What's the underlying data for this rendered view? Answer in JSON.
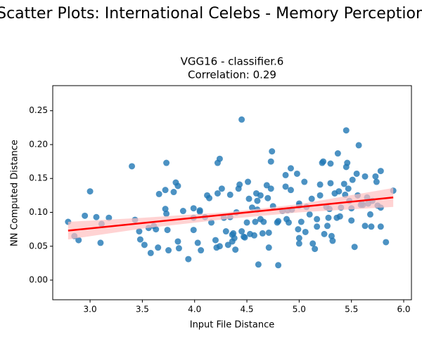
{
  "chart_data": {
    "type": "scatter",
    "suptitle": "Scatter Plots: International Celebs - Memory Perception",
    "title": "VGG16 - classifier.6",
    "subtitle": "Correlation: 0.29",
    "xlabel": "Input File Distance",
    "ylabel": "NN Computed Distance",
    "xlim": [
      2.643,
      6.074
    ],
    "ylim": [
      -0.029,
      0.287
    ],
    "xticks": [
      {
        "value": 3,
        "label": "3.0"
      },
      3.5,
      {
        "value": 4,
        "label": "4.0"
      },
      4.5,
      {
        "value": 5,
        "label": "5.0"
      },
      5.5,
      {
        "value": 6,
        "label": "6.0"
      }
    ],
    "yticks": [
      {
        "value": 0,
        "label": "0.00"
      },
      0.05,
      {
        "value": 0.1,
        "label": "0.10"
      },
      0.15,
      {
        "value": 0.2,
        "label": "0.20"
      },
      0.25
    ],
    "color": "#1f77b4",
    "x": [
      2.79,
      2.85,
      2.89,
      2.95,
      3.0,
      3.06,
      3.1,
      3.11,
      3.18,
      3.4,
      3.43,
      3.47,
      3.48,
      3.52,
      3.56,
      3.58,
      3.61,
      3.63,
      3.65,
      3.66,
      3.72,
      3.72,
      3.73,
      3.73,
      3.74,
      3.75,
      3.8,
      3.82,
      3.84,
      3.84,
      3.85,
      3.89,
      3.94,
      3.99,
      3.99,
      3.99,
      4.03,
      4.05,
      4.05,
      4.06,
      4.1,
      4.12,
      4.14,
      4.16,
      4.2,
      4.21,
      4.22,
      4.22,
      4.24,
      4.24,
      4.26,
      4.28,
      4.3,
      4.32,
      4.34,
      4.34,
      4.36,
      4.36,
      4.37,
      4.38,
      4.39,
      4.4,
      4.42,
      4.43,
      4.45,
      4.45,
      4.47,
      4.48,
      4.5,
      4.51,
      4.52,
      4.53,
      4.55,
      4.57,
      4.58,
      4.59,
      4.6,
      4.6,
      4.61,
      4.63,
      4.63,
      4.65,
      4.66,
      4.69,
      4.7,
      4.71,
      4.71,
      4.73,
      4.73,
      4.74,
      4.75,
      4.79,
      4.8,
      4.8,
      4.84,
      4.87,
      4.87,
      4.88,
      4.89,
      4.9,
      4.92,
      4.92,
      4.93,
      4.98,
      4.99,
      5.0,
      5.0,
      5.0,
      5.0,
      5.02,
      5.05,
      5.06,
      5.07,
      5.1,
      5.12,
      5.13,
      5.15,
      5.17,
      5.17,
      5.2,
      5.2,
      5.22,
      5.23,
      5.24,
      5.26,
      5.27,
      5.28,
      5.29,
      5.3,
      5.3,
      5.31,
      5.32,
      5.34,
      5.36,
      5.37,
      5.38,
      5.39,
      5.4,
      5.43,
      5.44,
      5.45,
      5.45,
      5.46,
      5.47,
      5.48,
      5.5,
      5.5,
      5.51,
      5.53,
      5.55,
      5.56,
      5.57,
      5.59,
      5.6,
      5.61,
      5.63,
      5.63,
      5.65,
      5.66,
      5.68,
      5.69,
      5.7,
      5.73,
      5.74,
      5.75,
      5.78,
      5.78,
      5.78,
      5.83,
      5.9
    ],
    "values": [
      0.086,
      0.065,
      0.059,
      0.095,
      0.131,
      0.093,
      0.055,
      0.083,
      0.092,
      0.168,
      0.089,
      0.072,
      0.06,
      0.052,
      0.077,
      0.04,
      0.08,
      0.075,
      0.048,
      0.127,
      0.133,
      0.105,
      0.173,
      0.098,
      0.074,
      0.044,
      0.13,
      0.144,
      0.139,
      0.057,
      0.047,
      0.102,
      0.031,
      0.092,
      0.074,
      0.106,
      0.055,
      0.101,
      0.103,
      0.044,
      0.093,
      0.125,
      0.121,
      0.085,
      0.059,
      0.048,
      0.173,
      0.128,
      0.179,
      0.05,
      0.135,
      0.092,
      0.072,
      0.052,
      0.126,
      0.093,
      0.067,
      0.057,
      0.069,
      0.062,
      0.045,
      0.1,
      0.135,
      0.141,
      0.237,
      0.072,
      0.064,
      0.063,
      0.085,
      0.145,
      0.12,
      0.068,
      0.107,
      0.066,
      0.086,
      0.128,
      0.117,
      0.104,
      0.023,
      0.09,
      0.125,
      0.069,
      0.086,
      0.14,
      0.121,
      0.07,
      0.048,
      0.175,
      0.135,
      0.19,
      0.109,
      0.085,
      0.087,
      0.022,
      0.102,
      0.155,
      0.138,
      0.09,
      0.103,
      0.085,
      0.165,
      0.133,
      0.104,
      0.157,
      0.075,
      0.113,
      0.11,
      0.054,
      0.062,
      0.086,
      0.145,
      0.071,
      0.108,
      0.097,
      0.12,
      0.054,
      0.046,
      0.09,
      0.079,
      0.141,
      0.125,
      0.173,
      0.175,
      0.068,
      0.108,
      0.08,
      0.092,
      0.105,
      0.172,
      0.143,
      0.065,
      0.058,
      0.128,
      0.092,
      0.187,
      0.131,
      0.094,
      0.107,
      0.142,
      0.126,
      0.221,
      0.167,
      0.173,
      0.135,
      0.117,
      0.106,
      0.088,
      0.148,
      0.049,
      0.157,
      0.125,
      0.199,
      0.111,
      0.113,
      0.111,
      0.08,
      0.153,
      0.122,
      0.113,
      0.097,
      0.079,
      0.117,
      0.153,
      0.145,
      0.11,
      0.079,
      0.107,
      0.161,
      0.056,
      0.132
    ],
    "regression": {
      "color": "#ff0000",
      "x": [
        2.79,
        5.9
      ],
      "values": [
        0.073,
        0.122
      ]
    },
    "band": {
      "color": "#ffc0c0",
      "x": [
        2.79,
        3.5,
        4.3,
        5.0,
        5.9
      ],
      "lower": [
        0.06,
        0.076,
        0.09,
        0.1,
        0.108
      ],
      "upper": [
        0.086,
        0.092,
        0.1,
        0.112,
        0.136
      ]
    }
  }
}
